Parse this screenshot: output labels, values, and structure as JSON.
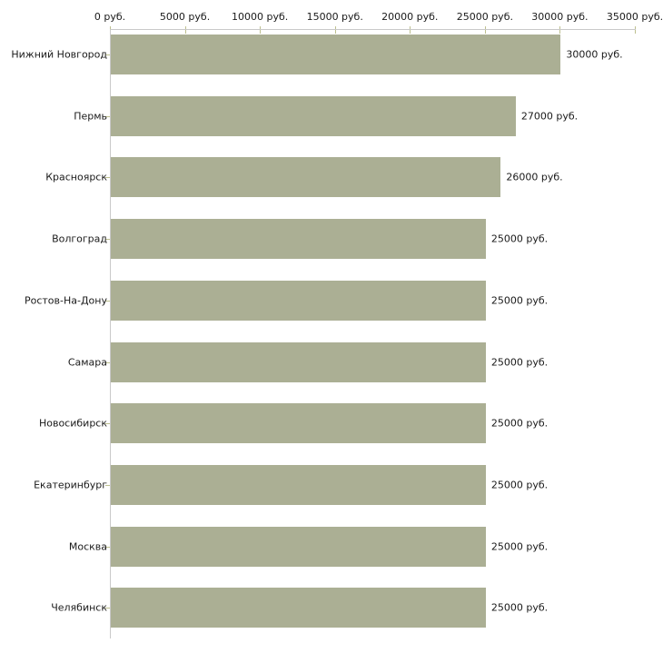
{
  "chart_data": {
    "type": "bar",
    "orientation": "horizontal",
    "title": "",
    "categories": [
      "Нижний Новгород",
      "Пермь",
      "Красноярск",
      "Волгоград",
      "Ростов-На-Дону",
      "Самара",
      "Новосибирск",
      "Екатеринбург",
      "Москва",
      "Челябинск"
    ],
    "values": [
      30000,
      27000,
      26000,
      25000,
      25000,
      25000,
      25000,
      25000,
      25000,
      25000
    ],
    "value_labels": [
      "30000 руб.",
      "27000 руб.",
      "26000 руб.",
      "25000 руб.",
      "25000 руб.",
      "25000 руб.",
      "25000 руб.",
      "25000 руб.",
      "25000 руб.",
      "25000 руб."
    ],
    "x_tick_values": [
      0,
      5000,
      10000,
      15000,
      20000,
      25000,
      30000,
      35000
    ],
    "x_tick_labels": [
      "0 руб.",
      "5000 руб.",
      "10000 руб.",
      "15000 руб.",
      "20000 руб.",
      "25000 руб.",
      "30000 руб.",
      "35000 руб."
    ],
    "xlim": [
      0,
      35000
    ],
    "xlabel": "",
    "ylabel": "",
    "grid": false,
    "legend": false,
    "colors": {
      "bar": "#abaf94",
      "tick_mark": "#bdc08f",
      "axis_line": "#c9c9c9",
      "text": "#1a1a1a",
      "background": "#ffffff"
    }
  }
}
